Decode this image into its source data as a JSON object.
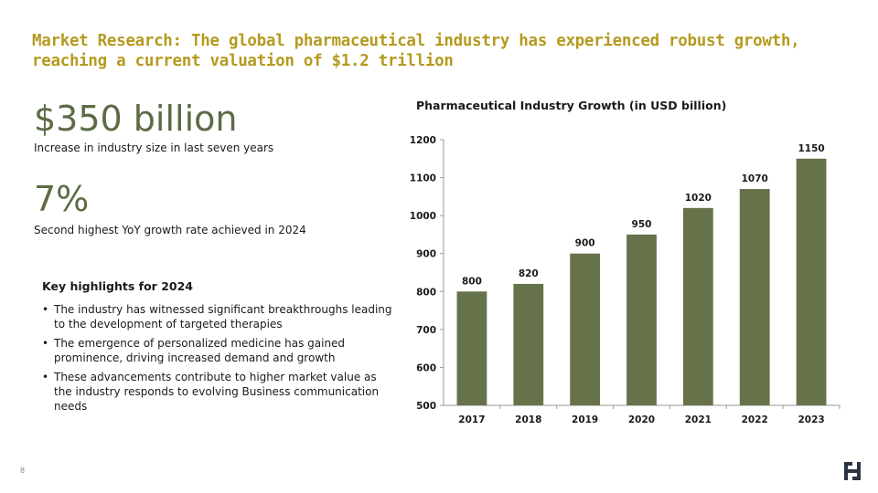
{
  "slide": {
    "title": "Market Research: The global pharmaceutical industry has experienced robust growth, reaching a current valuation of $1.2 trillion",
    "stats": [
      {
        "value": "$350 billion",
        "caption": "Increase in industry size in last seven years"
      },
      {
        "value": "7%",
        "caption": "Second highest YoY growth rate achieved in 2024"
      }
    ],
    "highlights": {
      "title": "Key highlights for 2024",
      "items": [
        "The industry has witnessed significant breakthroughs leading to the development of targeted therapies",
        "The emergence of personalized medicine has gained prominence, driving increased demand and growth",
        "These advancements contribute to higher market value as the industry responds to evolving Business communication needs"
      ]
    },
    "page_number": "8",
    "colors": {
      "title": "#b59a1f",
      "accent": "#5c6b45",
      "bar": "#667249"
    }
  },
  "chart_data": {
    "type": "bar",
    "title": "Pharmaceutical Industry Growth (in USD billion)",
    "categories": [
      "2017",
      "2018",
      "2019",
      "2020",
      "2021",
      "2022",
      "2023"
    ],
    "values": [
      800,
      820,
      900,
      950,
      1020,
      1070,
      1150
    ],
    "ylim": [
      500,
      1200
    ],
    "yticks": [
      500,
      600,
      700,
      800,
      900,
      1000,
      1100,
      1200
    ],
    "xlabel": "",
    "ylabel": "",
    "grid": false,
    "data_labels": true
  }
}
